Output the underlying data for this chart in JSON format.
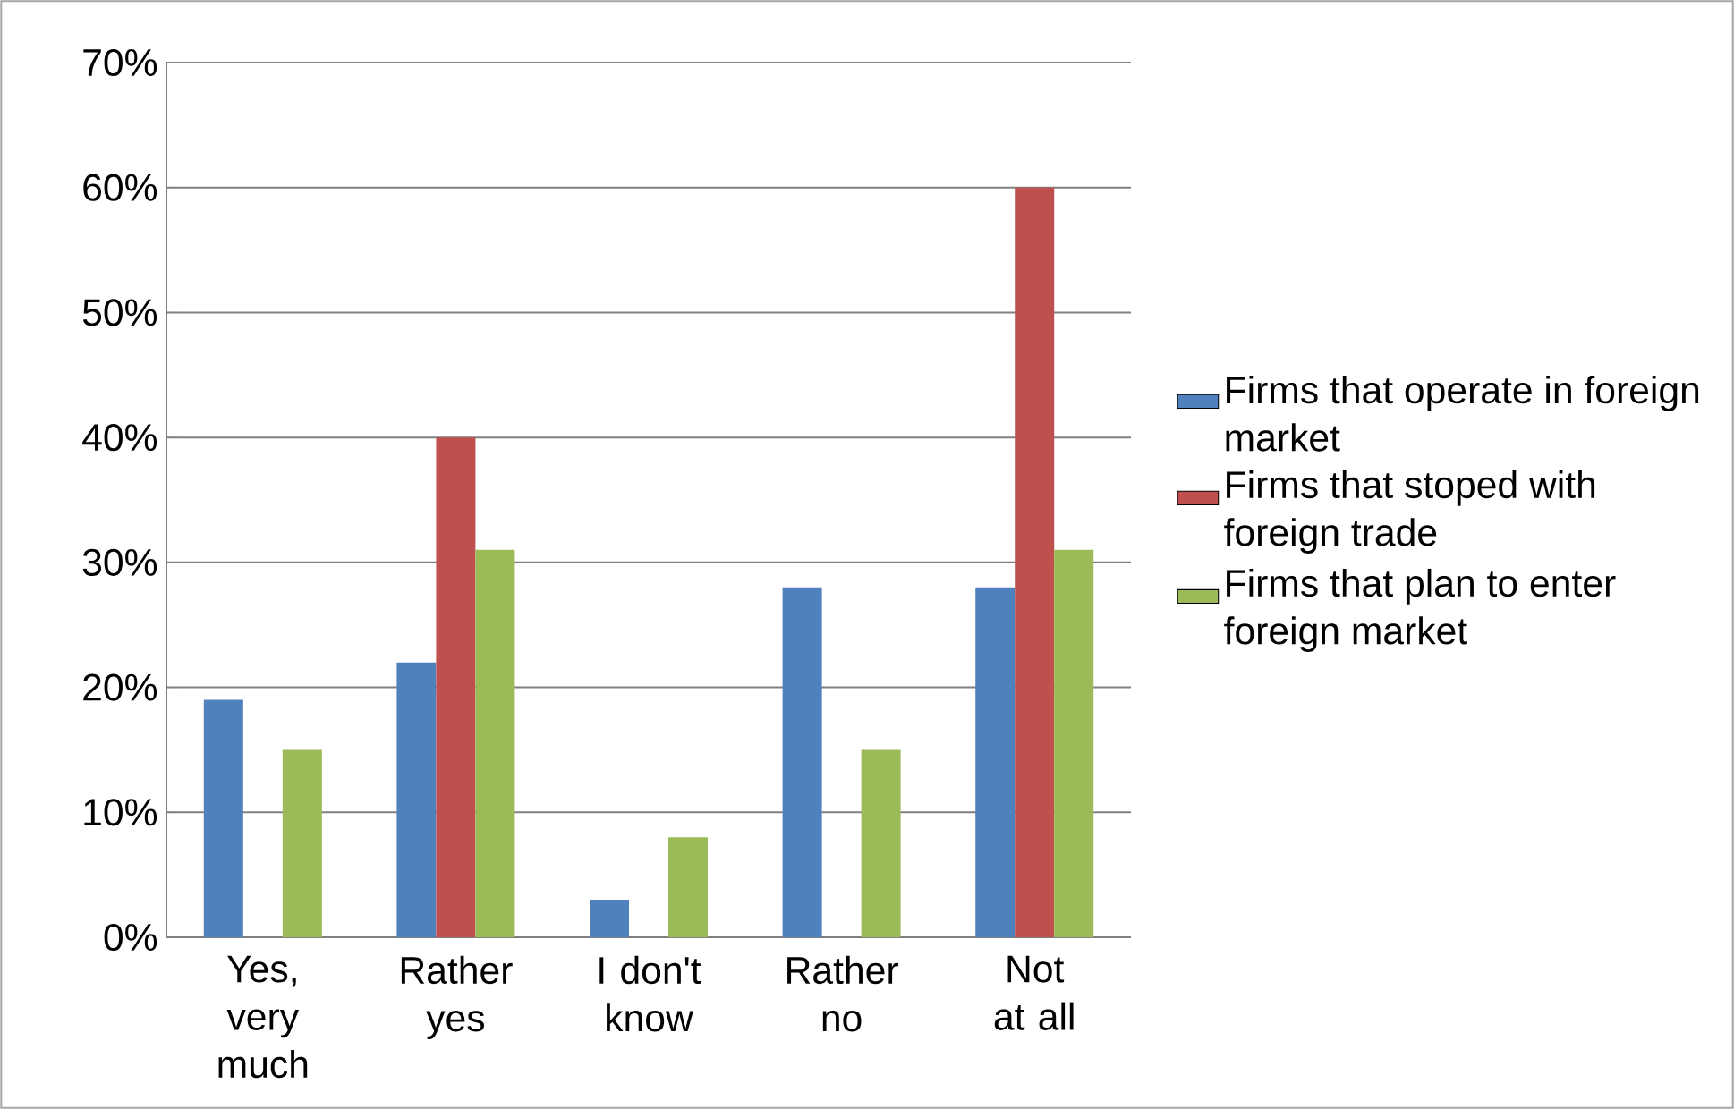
{
  "chart_data": {
    "type": "bar",
    "categories": [
      "Yes, very much",
      "Rather yes",
      "I don't know",
      "Rather no",
      "Not at all"
    ],
    "series": [
      {
        "name": "Firms that operate in foreign market",
        "color": "#4f81bd",
        "values": [
          19,
          22,
          3,
          28,
          28
        ]
      },
      {
        "name": "Firms that stoped with foreign trade",
        "color": "#c0504d",
        "values": [
          null,
          40,
          null,
          null,
          60
        ]
      },
      {
        "name": "Firms that plan to enter foreign market",
        "color": "#9bbb59",
        "values": [
          15,
          31,
          8,
          15,
          31
        ]
      }
    ],
    "ylim": [
      0,
      70
    ],
    "yticks": [
      {
        "value": 0,
        "label": "0%"
      },
      {
        "value": 10,
        "label": "10%"
      },
      {
        "value": 20,
        "label": "20%"
      },
      {
        "value": 30,
        "label": "30%"
      },
      {
        "value": 40,
        "label": "40%"
      },
      {
        "value": 50,
        "label": "50%"
      },
      {
        "value": 60,
        "label": "60%"
      },
      {
        "value": 70,
        "label": "70%"
      }
    ],
    "grid": "y",
    "legend": "right"
  }
}
